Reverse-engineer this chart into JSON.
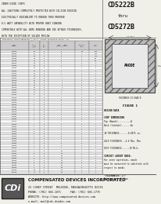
{
  "title_part": "CD5222B",
  "title_sub1": "thru",
  "title_sub2": "CD5272B",
  "header_lines": [
    "ZENER DIODE CHIPS",
    "ALL JUNCTIONS COMPLETELY PROTECTED WITH SILICON DIOXIDE",
    "ELECTRICALLY EQUIVALENT TO VR486B THRU VR6986B",
    "0.5 WATT CAPABILITY WITH PROPER HEAT SINKING",
    "COMPATIBLE WITH ALL WIRE BONDING AND DIE ATTACH TECHNIQUES,",
    "WITH THE EXCEPTION OF SOLDER REFLOW"
  ],
  "table_title": "ELECTRICAL CHARACTERISTICS @ 25°C, unless otherwise noted. All",
  "rows": [
    [
      "CD5222B",
      "2.5",
      "20",
      "30",
      "100",
      "1200"
    ],
    [
      "CD5223B",
      "2.7",
      "20",
      "30",
      "75",
      "1200"
    ],
    [
      "CD5224B",
      "2.9",
      "20",
      "30",
      "75",
      "1100"
    ],
    [
      "CD5225B",
      "3.0",
      "20",
      "29",
      "75",
      "500"
    ],
    [
      "CD5226B",
      "3.3",
      "20",
      "28",
      "70",
      "200"
    ],
    [
      "CD5227B",
      "3.6",
      "20",
      "24",
      "70",
      "70"
    ],
    [
      "CD5228B",
      "3.9",
      "20",
      "23",
      "70",
      "30"
    ],
    [
      "CD5229B",
      "4.3",
      "20",
      "22",
      "70",
      "10"
    ],
    [
      "CD5230B",
      "4.7",
      "20",
      "19",
      "70",
      "5"
    ],
    [
      "CD5231B",
      "5.1",
      "20",
      "17",
      "70",
      "5"
    ],
    [
      "CD5232B",
      "5.6",
      "20",
      "11",
      "70",
      "5"
    ],
    [
      "CD5233B",
      "6.0",
      "20",
      "7",
      "70",
      "5"
    ],
    [
      "CD5234B",
      "6.2",
      "20",
      "7",
      "70",
      "5"
    ],
    [
      "CD5235B",
      "6.8",
      "20",
      "5",
      "70",
      "5"
    ],
    [
      "CD5236B",
      "7.5",
      "20",
      "6",
      "70",
      "5"
    ],
    [
      "CD5237B",
      "8.2",
      "20",
      "8",
      "70",
      "5"
    ],
    [
      "CD5238B",
      "8.7",
      "20",
      "8",
      "70",
      "5"
    ],
    [
      "CD5239B",
      "9.1",
      "20",
      "10",
      "70",
      "5"
    ],
    [
      "CD5240B",
      "10",
      "20",
      "17",
      "70",
      "5"
    ],
    [
      "CD5241B",
      "11",
      "20",
      "22",
      "70",
      "5"
    ],
    [
      "CD5242B",
      "12",
      "20",
      "30",
      "70",
      "5"
    ],
    [
      "CD5243B",
      "13",
      "20",
      "13",
      "70",
      "5"
    ],
    [
      "CD5244B",
      "14",
      "20",
      "15",
      "70",
      "5"
    ],
    [
      "CD5245B",
      "15",
      "20",
      "16",
      "70",
      "5"
    ],
    [
      "CD5246B",
      "16",
      "20",
      "17",
      "70",
      "5"
    ],
    [
      "CD5247B",
      "17",
      "20",
      "19",
      "70",
      "5"
    ],
    [
      "CD5248B",
      "18",
      "20",
      "21",
      "70",
      "5"
    ],
    [
      "CD5249B",
      "19",
      "20",
      "23",
      "70",
      "5"
    ],
    [
      "CD5250B",
      "20",
      "20",
      "25",
      "70",
      "5"
    ],
    [
      "CD5251B",
      "22",
      "20",
      "29",
      "70",
      "5"
    ],
    [
      "CD5252B",
      "24",
      "20",
      "33",
      "70",
      "5"
    ],
    [
      "CD5253B",
      "25",
      "20",
      "35",
      "70",
      "5"
    ],
    [
      "CD5254B",
      "27",
      "20",
      "41",
      "70",
      "5"
    ],
    [
      "CD5255B",
      "28",
      "20",
      "44",
      "70",
      "5"
    ],
    [
      "CD5256B",
      "30",
      "20",
      "49",
      "70",
      "5"
    ],
    [
      "CD5257B",
      "33",
      "20",
      "58",
      "70",
      "5"
    ],
    [
      "CD5258B",
      "36",
      "20",
      "52",
      "70",
      "5"
    ],
    [
      "CD5259B",
      "39",
      "20",
      "64",
      "70",
      "5"
    ],
    [
      "CD5260B",
      "43",
      "20",
      "70",
      "70",
      "5"
    ],
    [
      "CD5261B",
      "47",
      "20",
      "80",
      "70",
      "5"
    ],
    [
      "CD5262B",
      "51",
      "20",
      "95",
      "70",
      "5"
    ],
    [
      "CD5263B",
      "56",
      "20",
      "110",
      "70",
      "5"
    ],
    [
      "CD5264B",
      "60",
      "20",
      "125",
      "70",
      "5"
    ],
    [
      "CD5265B",
      "62",
      "20",
      "150",
      "70",
      "5"
    ],
    [
      "CD5266B",
      "68",
      "20",
      "150",
      "70",
      "5"
    ],
    [
      "CD5267B",
      "75",
      "20",
      "175",
      "70",
      "5"
    ],
    [
      "CD5268B",
      "82",
      "20",
      "200",
      "70",
      "5"
    ],
    [
      "CD5269B",
      "87",
      "20",
      "200",
      "70",
      "5"
    ],
    [
      "CD5270B",
      "91",
      "20",
      "200",
      "70",
      "5"
    ],
    [
      "CD5271B",
      "100",
      "20",
      "250",
      "70",
      "5"
    ],
    [
      "CD5272B",
      "110",
      "20",
      "250",
      "70",
      "5"
    ]
  ],
  "col_labels": [
    "TYPE\nNUMBER",
    "NOMINAL\nZENER\nVOLTAGE\nVz(V)\n@IzT",
    "TEST\nCURRENT\nIzT\n(mA)",
    "MAXIMUM ZENER\nIMPEDANCE\nZzT(@IzT)  Zzk(@Izk)\n  (Ohms)     (Ohms)",
    "MAXIMUM\nLEAKAGE\nCURRENT\nIR  @VR",
    "MAXIMUM\nREVERSE\nCURRENT\nIR  Mils"
  ],
  "figure_label": "FIGURE 1",
  "figure_note": "THICKNESS IS EXAG'D",
  "design_data": [
    [
      "DESIGN DATA",
      true
    ],
    [
      "",
      false
    ],
    [
      "CHIP DIMENSIONS",
      true
    ],
    [
      "Top (Anode)..........A",
      false
    ],
    [
      "Back (Cathode).......Ac",
      false
    ],
    [
      "",
      false
    ],
    [
      "JA THICKNESS.......0.0075 in.",
      false
    ],
    [
      "",
      false
    ],
    [
      "GOLD THICKNESS...4-6 Min. Min",
      false
    ],
    [
      "",
      false
    ],
    [
      "CHIP THICKNESS......10 Mils",
      false
    ],
    [
      "",
      false
    ],
    [
      "CIRCUIT LAYOUT DATA:",
      true
    ],
    [
      "For zener operation, anode",
      false
    ],
    [
      "must be connected to substrate with",
      false
    ],
    [
      "respect to anode.",
      false
    ],
    [
      "",
      false
    ],
    [
      "*TOLERANCES: +-/",
      true
    ],
    [
      "Dimensions +-1 thou",
      false
    ]
  ],
  "company_name": "COMPENSATED DEVICES INCORPORATED",
  "company_address": "22 COREY STREET  MELROSE, MASSACHUSETTS 02176",
  "company_phone": "PHONE: (781) 665-1071",
  "company_fax": "FAX: (781) 665-1775",
  "company_website": "WEBSITE: http://www.compensated-devices.com",
  "company_email": "e-mail: mail@cdi-diodes.com",
  "bg_color": "#f0efe8",
  "table_bg": "#ffffff",
  "header_bg": "#cccccc",
  "border_color": "#666666",
  "text_color": "#111111",
  "company_bg": "#d8d8d8",
  "chip_outer_color": "#bbbbbb",
  "chip_inner_color": "#e8e8e8"
}
